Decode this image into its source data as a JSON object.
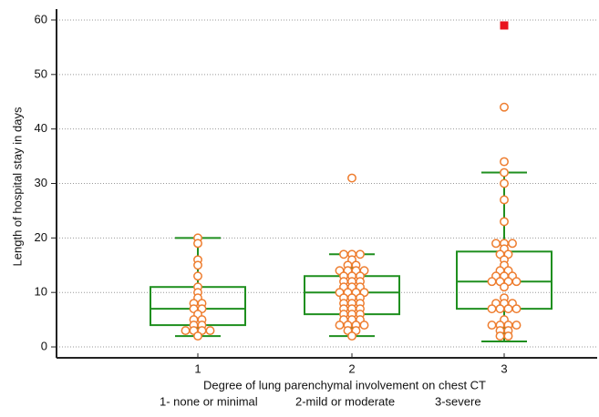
{
  "chart_data": {
    "type": "box",
    "y_label": "Length of hospital stay in days",
    "x_label": "Degree of lung parenchymal  involvement on chest CT",
    "x_notes": [
      "1- none or minimal",
      "2-mild or moderate",
      "3-severe"
    ],
    "categories": [
      "1",
      "2",
      "3"
    ],
    "box_color": "#1f8f1f",
    "point_color": "#ee7d2f",
    "outlier_color": "#e8141e",
    "ylim": [
      -2,
      62
    ],
    "yticks": [
      0,
      10,
      20,
      30,
      40,
      50,
      60
    ],
    "grid": true,
    "boxes": [
      {
        "whisker_low": 2,
        "q1": 4,
        "median": 7,
        "q3": 11,
        "whisker_high": 20,
        "points": [
          20,
          19,
          16,
          15,
          13,
          11,
          10,
          9,
          8,
          8,
          7,
          7,
          6,
          5,
          5,
          4,
          4,
          3,
          3,
          3,
          3,
          2
        ],
        "outliers": []
      },
      {
        "whisker_low": 2,
        "q1": 6,
        "median": 10,
        "q3": 13,
        "whisker_high": 17,
        "points": [
          31,
          17,
          17,
          17,
          16,
          15,
          15,
          14,
          14,
          14,
          14,
          13,
          13,
          13,
          12,
          12,
          12,
          11,
          11,
          11,
          10,
          10,
          10,
          10,
          9,
          9,
          9,
          8,
          8,
          8,
          7,
          7,
          7,
          6,
          6,
          6,
          5,
          5,
          5,
          4,
          4,
          4,
          4,
          3,
          3,
          2
        ],
        "outliers": []
      },
      {
        "whisker_low": 1,
        "q1": 7,
        "median": 12,
        "q3": 17.5,
        "whisker_high": 32,
        "points": [
          44,
          34,
          32,
          30,
          27,
          23,
          19,
          19,
          19,
          18,
          17,
          17,
          16,
          15,
          14,
          14,
          13,
          13,
          13,
          12,
          12,
          12,
          12,
          11,
          9,
          8,
          8,
          8,
          7,
          7,
          7,
          7,
          5,
          4,
          4,
          4,
          4,
          3,
          3,
          2,
          2
        ],
        "outliers": [
          59
        ]
      }
    ]
  }
}
